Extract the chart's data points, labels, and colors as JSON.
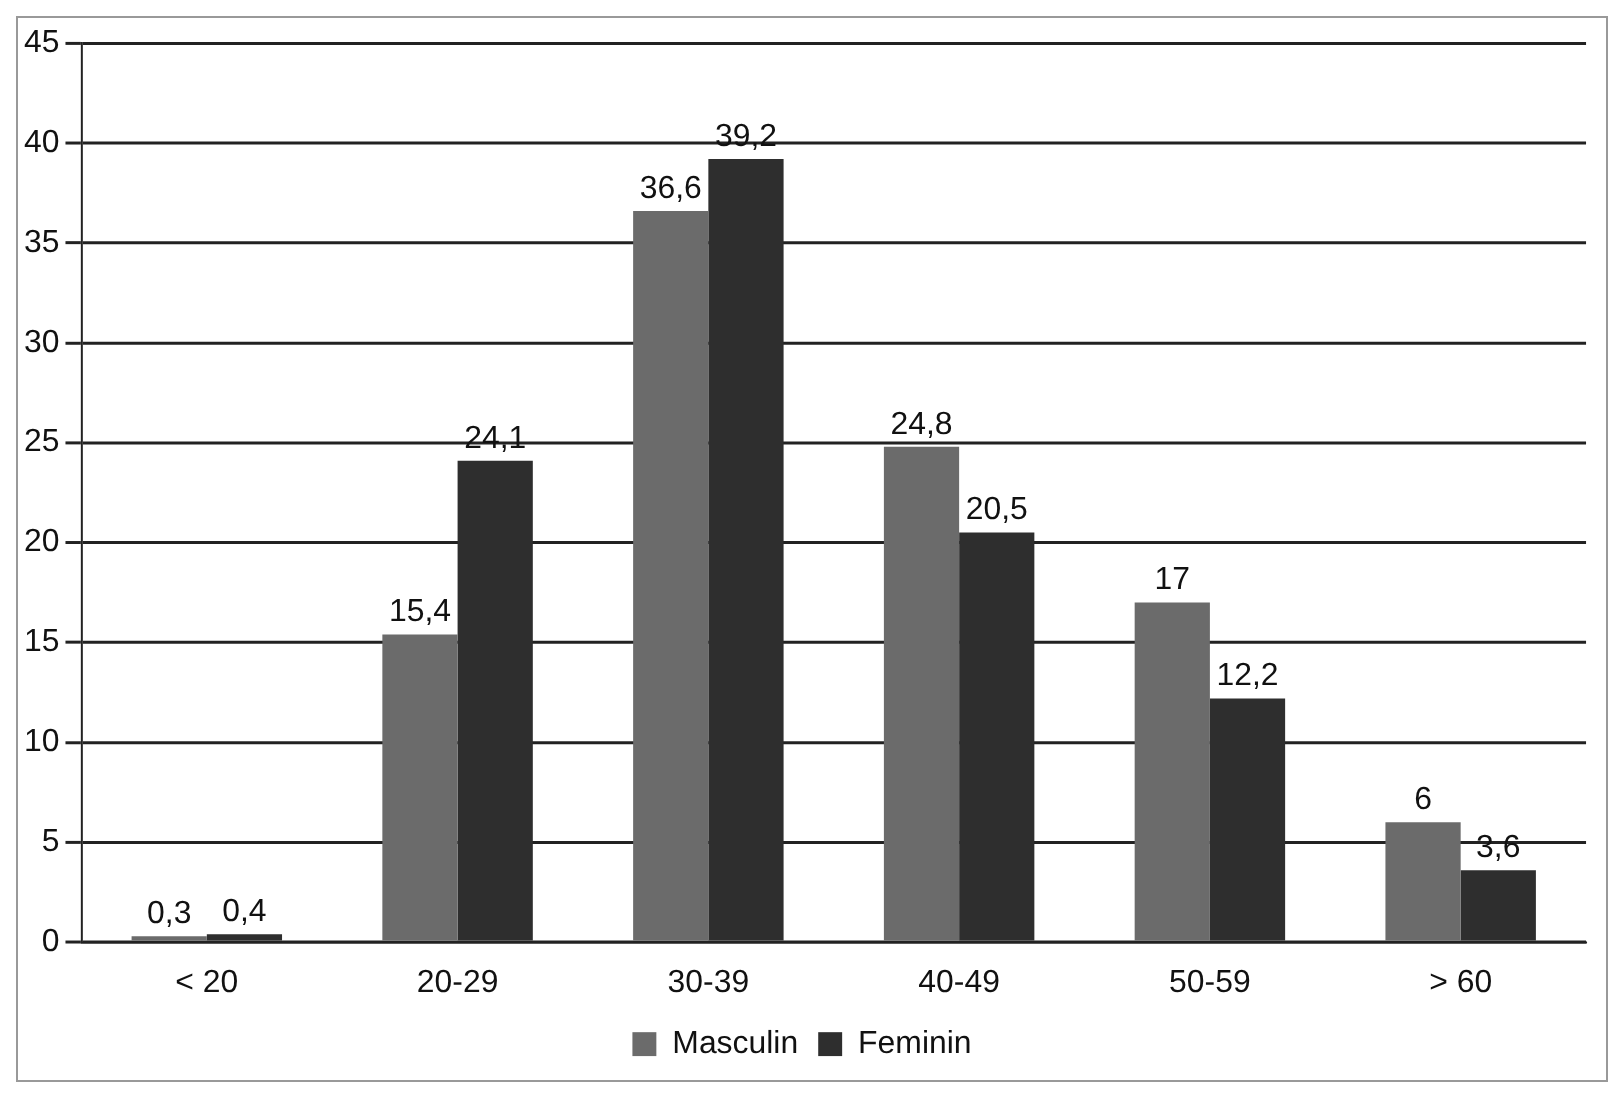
{
  "chart_data": {
    "type": "bar",
    "categories": [
      "< 20",
      "20-29",
      "30-39",
      "40-49",
      "50-59",
      "> 60"
    ],
    "series": [
      {
        "name": "Masculin",
        "color": "#6b6b6b",
        "values": [
          0.3,
          15.4,
          36.6,
          24.8,
          17,
          6
        ],
        "value_labels": [
          "0,3",
          "15,4",
          "36,6",
          "24,8",
          "17",
          "6"
        ]
      },
      {
        "name": "Feminin",
        "color": "#2e2e2e",
        "values": [
          0.4,
          24.1,
          39.2,
          20.5,
          12.2,
          3.6
        ],
        "value_labels": [
          "0,4",
          "24,1",
          "39,2",
          "20,5",
          "12,2",
          "3,6"
        ]
      }
    ],
    "ylim": [
      0,
      45
    ],
    "yticks": [
      0,
      5,
      10,
      15,
      20,
      25,
      30,
      35,
      40,
      45
    ],
    "grid": "y",
    "legend": "bottom"
  }
}
